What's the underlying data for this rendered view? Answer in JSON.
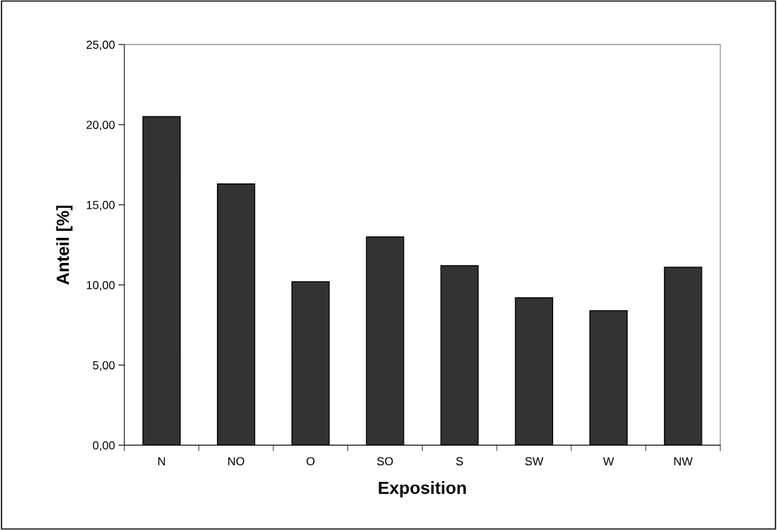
{
  "chart_data": {
    "type": "bar",
    "xlabel": "Exposition",
    "ylabel": "Anteil [%]",
    "categories": [
      "N",
      "NO",
      "O",
      "SO",
      "S",
      "SW",
      "W",
      "NW"
    ],
    "values": [
      20.5,
      16.3,
      10.2,
      13.0,
      11.2,
      9.2,
      8.4,
      11.1
    ],
    "color": "#333333",
    "ylim": [
      0,
      25
    ],
    "yticks": [
      {
        "value": 0,
        "label": "0,00"
      },
      {
        "value": 5,
        "label": "5,00"
      },
      {
        "value": 10,
        "label": "10,00"
      },
      {
        "value": 15,
        "label": "15,00"
      },
      {
        "value": 20,
        "label": "20,00"
      },
      {
        "value": 25,
        "label": "25,00"
      }
    ],
    "grid": false
  }
}
